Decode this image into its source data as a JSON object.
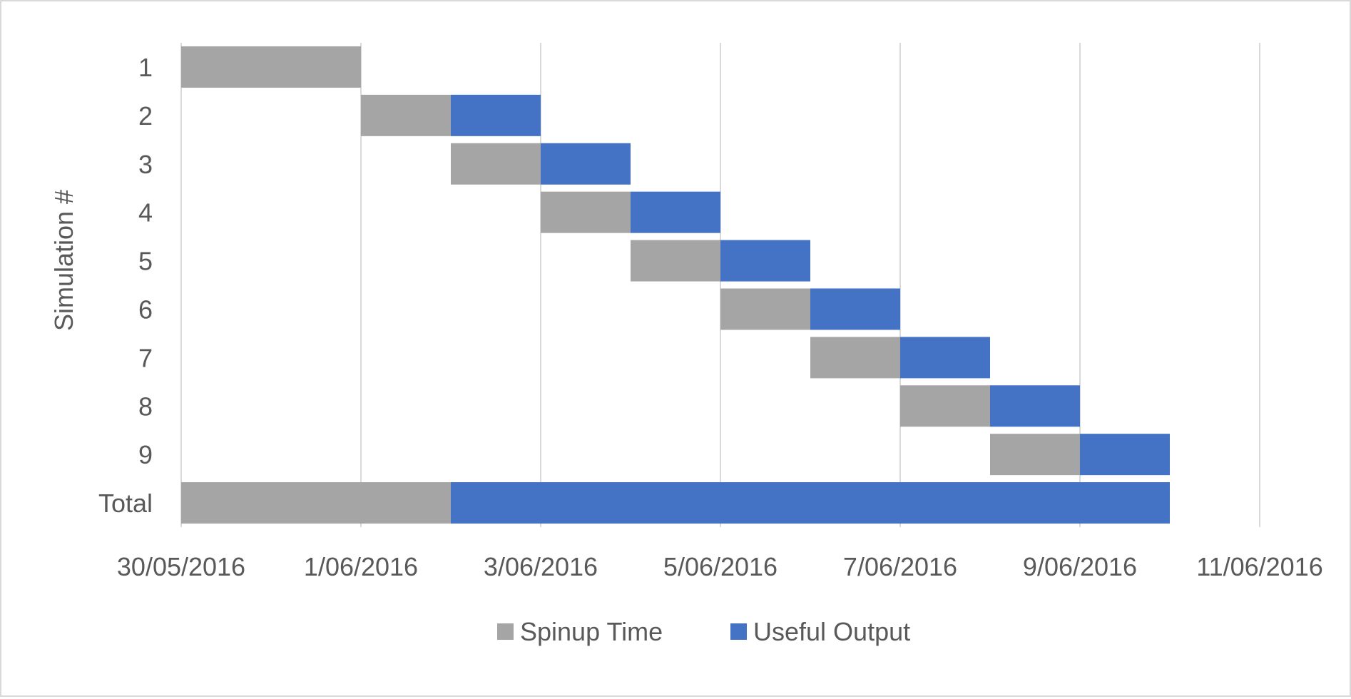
{
  "chart_data": {
    "type": "bar",
    "orientation": "horizontal",
    "stacked": true,
    "title": "",
    "xlabel": "",
    "ylabel": "Simulation #",
    "categories": [
      "1",
      "2",
      "3",
      "4",
      "5",
      "6",
      "7",
      "8",
      "9",
      "Total"
    ],
    "start_dates": [
      "30/05/2016",
      "1/06/2016",
      "2/06/2016",
      "3/06/2016",
      "4/06/2016",
      "5/06/2016",
      "6/06/2016",
      "7/06/2016",
      "8/06/2016",
      "30/05/2016"
    ],
    "series": [
      {
        "name": "Spinup Time",
        "color": "#a5a5a5",
        "values": [
          2,
          1,
          1,
          1,
          1,
          1,
          1,
          1,
          1,
          3
        ]
      },
      {
        "name": "Useful Output",
        "color": "#4472c4",
        "values": [
          0,
          1,
          1,
          1,
          1,
          1,
          1,
          1,
          1,
          8
        ]
      }
    ],
    "value_unit": "days",
    "xlim": [
      "30/05/2016",
      "11/06/2016"
    ],
    "x_ticks": [
      "30/05/2016",
      "1/06/2016",
      "3/06/2016",
      "5/06/2016",
      "7/06/2016",
      "9/06/2016",
      "11/06/2016"
    ],
    "grid": true,
    "legend_position": "bottom"
  }
}
